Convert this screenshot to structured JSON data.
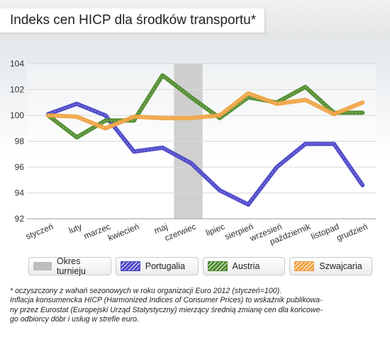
{
  "title": "Indeks cen HICP dla środków transportu*",
  "chart_data": {
    "type": "line",
    "categories": [
      "styczeń",
      "luty",
      "marzec",
      "kwiecień",
      "maj",
      "czerwiec",
      "lipiec",
      "sierpień",
      "wrzesień",
      "październik",
      "listopad",
      "grudzień"
    ],
    "yticks": [
      "92",
      "94",
      "96",
      "98",
      "100",
      "102",
      "104"
    ],
    "ylim": [
      92,
      104
    ],
    "grid": true,
    "highlight_band": {
      "name": "Okres turnieju",
      "from_category": "maj",
      "to_category": "czerwiec",
      "color": "#c8c8c8"
    },
    "series": [
      {
        "name": "Portugalia",
        "color": "#4a44c8",
        "values": [
          100.1,
          100.9,
          100.0,
          97.2,
          97.5,
          96.3,
          94.2,
          93.1,
          96.0,
          97.8,
          97.8,
          94.6
        ]
      },
      {
        "name": "Austria",
        "color": "#4e8a2c",
        "values": [
          100.0,
          98.3,
          99.6,
          99.6,
          103.1,
          101.4,
          99.8,
          101.4,
          101.0,
          102.2,
          100.2,
          100.2
        ]
      },
      {
        "name": "Szwajcaria",
        "color": "#f0a240",
        "values": [
          100.0,
          99.9,
          99.0,
          99.9,
          99.8,
          99.8,
          100.0,
          101.7,
          100.9,
          101.2,
          100.1,
          101.0
        ]
      }
    ]
  },
  "legend": [
    {
      "label": "Okres turnieju",
      "color": "#bdbdbd"
    },
    {
      "label": "Portugalia",
      "color": "#4a44c8"
    },
    {
      "label": "Austria",
      "color": "#4e8a2c"
    },
    {
      "label": "Szwajcaria",
      "color": "#f0a240"
    }
  ],
  "footnote": {
    "line1": "* oczyszczony z wahań sezonowych w roku organizacji Euro 2012 (styczeń=100).",
    "line2": "Inflacja konsumencka HICP (Harmonized Indices of Consumer Prices) to wskaźnik publikowa-\nny przez Eurostat (Europejski Urząd Statystyczny) mierzący średnią zmianę cen dla końcowe-\ngo odbiorcy dóbr i usług w strefie euro."
  }
}
